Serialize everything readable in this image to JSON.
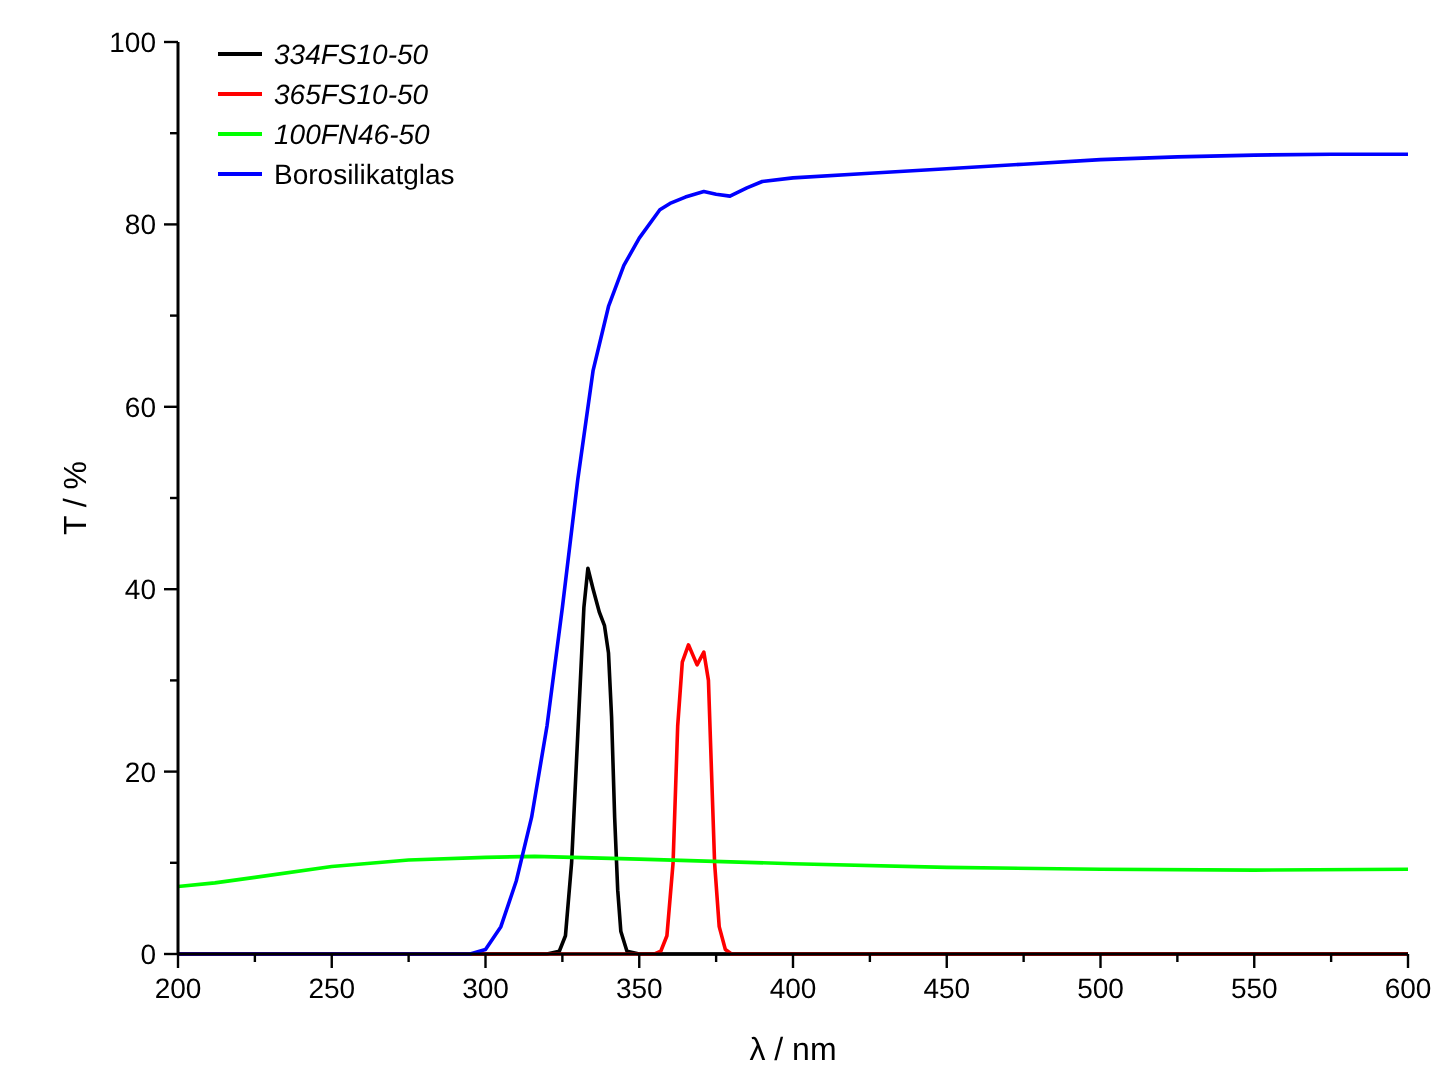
{
  "chart_data": {
    "type": "line",
    "xlabel": "λ / nm",
    "ylabel": "T / %",
    "xlim": [
      200,
      600
    ],
    "ylim": [
      0,
      100
    ],
    "xticks": [
      200,
      {
        "value": 225,
        "label": null
      },
      250,
      {
        "value": 275,
        "label": null
      },
      300,
      {
        "value": 325,
        "label": null
      },
      350,
      {
        "value": 375,
        "label": null
      },
      400,
      {
        "value": 425,
        "label": null
      },
      450,
      {
        "value": 475,
        "label": null
      },
      500,
      {
        "value": 525,
        "label": null
      },
      550,
      {
        "value": 575,
        "label": null
      },
      600
    ],
    "yticks": [
      0,
      {
        "value": 10,
        "label": null
      },
      20,
      {
        "value": 30,
        "label": null
      },
      40,
      {
        "value": 50,
        "label": null
      },
      60,
      {
        "value": 70,
        "label": null
      },
      80,
      {
        "value": 90,
        "label": null
      },
      100
    ],
    "grid": false,
    "legend": "top left",
    "marker": "none",
    "line_style": "solid",
    "series": [
      {
        "name": "334FS10-50",
        "color": "#000000",
        "x": [
          200,
          320,
          324,
          326,
          328,
          330,
          332,
          333.3,
          335,
          337,
          338.7,
          340,
          341,
          342,
          343,
          344,
          346,
          350,
          600
        ],
        "values": [
          0,
          0,
          0.3,
          2,
          10,
          24,
          38,
          42.3,
          40,
          37.5,
          36,
          33,
          26,
          15,
          7,
          2.5,
          0.3,
          0,
          0
        ]
      },
      {
        "name": "365FS10-50",
        "color": "#ff0000",
        "x": [
          200,
          355,
          357,
          359,
          361,
          362.5,
          364,
          366,
          368.8,
          371,
          372.5,
          373.5,
          374.5,
          376,
          378,
          380,
          600
        ],
        "values": [
          0,
          0,
          0.3,
          2,
          10,
          25,
          32,
          33.9,
          31.7,
          33.1,
          30,
          20,
          10,
          3,
          0.5,
          0,
          0
        ]
      },
      {
        "name": "100FN46-50",
        "color": "#00ff00",
        "x": [
          200,
          212,
          225,
          250,
          275,
          300,
          316,
          350,
          400,
          450,
          500,
          550,
          600
        ],
        "values": [
          7.4,
          7.8,
          8.4,
          9.6,
          10.3,
          10.6,
          10.7,
          10.4,
          9.9,
          9.5,
          9.3,
          9.2,
          9.3
        ]
      },
      {
        "name": "Borosilikatglas",
        "color": "#0000ff",
        "x": [
          200,
          295,
          300,
          305,
          310,
          315,
          320,
          325,
          330,
          335,
          340,
          345,
          350,
          356.7,
          360,
          365,
          371,
          375,
          379.5,
          385,
          390,
          400,
          425,
          450,
          475,
          500,
          525,
          550,
          575,
          600
        ],
        "values": [
          0,
          0,
          0.5,
          3,
          8,
          15,
          25,
          38,
          52,
          64,
          71,
          75.5,
          78.5,
          81.6,
          82.3,
          83,
          83.6,
          83.3,
          83.1,
          84,
          84.7,
          85.1,
          85.6,
          86.1,
          86.6,
          87.1,
          87.4,
          87.6,
          87.7,
          87.7
        ]
      }
    ]
  }
}
